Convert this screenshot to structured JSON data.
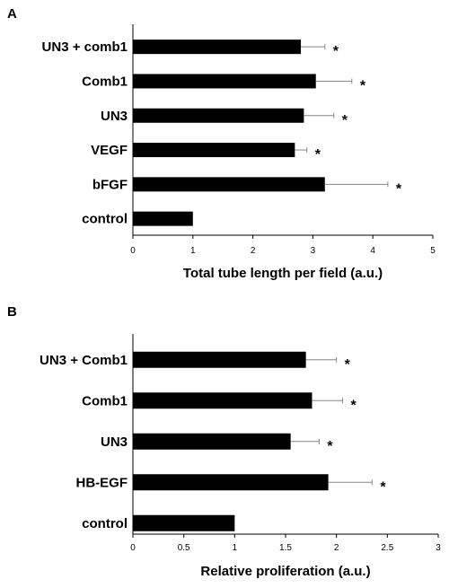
{
  "chart_data": [
    {
      "type": "bar",
      "orientation": "horizontal",
      "panel": "A",
      "categories": [
        "UN3 + comb1",
        "Comb1",
        "UN3",
        "VEGF",
        "bFGF",
        "control"
      ],
      "values": [
        2.8,
        3.05,
        2.85,
        2.7,
        3.2,
        1.0
      ],
      "errors": [
        0.4,
        0.6,
        0.5,
        0.2,
        1.05,
        0
      ],
      "significance": [
        "*",
        "*",
        "*",
        "*",
        "*",
        ""
      ],
      "xlabel": "Total tube length per field (a.u.)",
      "xlim": [
        0,
        5
      ],
      "xticks": [
        "0",
        "1",
        "2",
        "3",
        "4",
        "5"
      ],
      "xtick_values": [
        0,
        1,
        2,
        3,
        4,
        5
      ],
      "grid": false
    },
    {
      "type": "bar",
      "orientation": "horizontal",
      "panel": "B",
      "categories": [
        "UN3 + Comb1",
        "Comb1",
        "UN3",
        "HB-EGF",
        "control"
      ],
      "values": [
        1.7,
        1.76,
        1.55,
        1.92,
        1.0
      ],
      "errors": [
        0.3,
        0.3,
        0.28,
        0.43,
        0
      ],
      "significance": [
        "*",
        "*",
        "*",
        "*",
        ""
      ],
      "xlabel": "Relative proliferation (a.u.)",
      "xlim": [
        0,
        3
      ],
      "xticks": [
        "0",
        "0.5",
        "1",
        "1.5",
        "2",
        "2.5",
        "3"
      ],
      "xtick_values": [
        0,
        0.5,
        1,
        1.5,
        2,
        2.5,
        3
      ],
      "grid": false
    }
  ],
  "colors": {
    "bar": "#000000",
    "error_bar": "#888888",
    "background": "#ffffff"
  }
}
